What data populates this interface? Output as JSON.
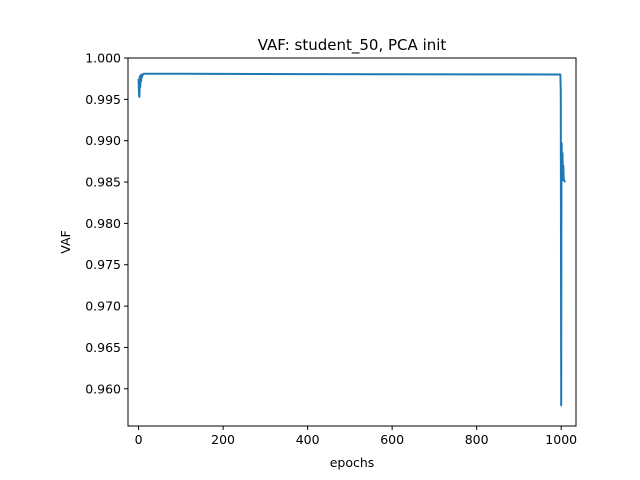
{
  "chart_data": {
    "type": "line",
    "title": "VAF: student_50, PCA init",
    "xlabel": "epochs",
    "ylabel": "VAF",
    "xlim": [
      -25,
      1035
    ],
    "ylim": [
      0.9555,
      1.0
    ],
    "xticks": [
      0,
      200,
      400,
      600,
      800,
      1000
    ],
    "xtick_labels": [
      "0",
      "200",
      "400",
      "600",
      "800",
      "1000"
    ],
    "yticks": [
      0.96,
      0.965,
      0.97,
      0.975,
      0.98,
      0.985,
      0.99,
      0.995,
      1.0
    ],
    "ytick_labels": [
      "0.960",
      "0.965",
      "0.970",
      "0.975",
      "0.980",
      "0.985",
      "0.990",
      "0.995",
      "1.000"
    ],
    "grid": false,
    "line_color": "#1f77b4",
    "series": [
      {
        "x": [
          0,
          1,
          2,
          3,
          4,
          5,
          6,
          7,
          8,
          10,
          12,
          15,
          20,
          30,
          50,
          100,
          200,
          400,
          600,
          800,
          998,
          999,
          1000,
          1000.5,
          1001,
          1002,
          1003,
          1004,
          1005,
          1006,
          1008,
          1010
        ],
        "y": [
          0.9975,
          0.9956,
          0.9953,
          0.9978,
          0.9965,
          0.9979,
          0.9972,
          0.998,
          0.9977,
          0.998,
          0.9981,
          0.9981,
          0.9981,
          0.9981,
          0.9981,
          0.9981,
          0.99808,
          0.99805,
          0.99803,
          0.99802,
          0.99801,
          0.996,
          0.958,
          0.985,
          0.9897,
          0.9855,
          0.9885,
          0.9852,
          0.987,
          0.9853,
          0.9851,
          0.985
        ]
      }
    ]
  }
}
